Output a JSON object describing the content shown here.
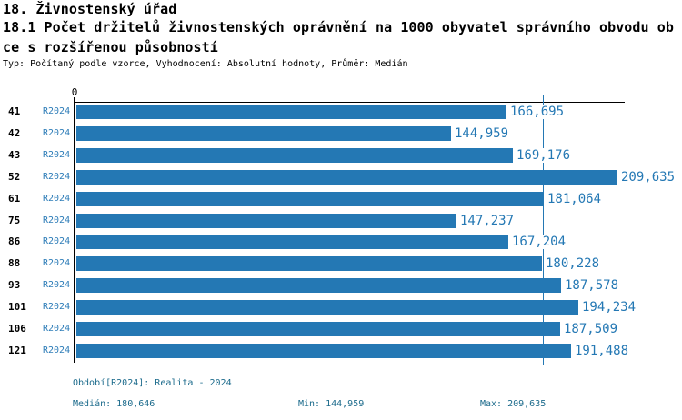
{
  "header": {
    "title_line1": "18. Živnostenský úřad",
    "title_line2": "18.1 Počet držitelů živnostenských oprávnění na 1000 obyvatel správního obvodu ob",
    "title_line3": "ce s rozšířenou působností",
    "subtitle": "Typ: Počítaný podle vzorce, Vyhodnocení: Absolutní hodnoty, Průměr: Medián"
  },
  "chart_data": {
    "type": "bar",
    "orientation": "horizontal",
    "title": "18.1 Počet držitelů živnostenských oprávnění na 1000 obyvatel správního obvodu obce s rozšířenou působností",
    "origin_tick_label": "0",
    "series_label": "R2024",
    "categories": [
      "41",
      "42",
      "43",
      "52",
      "61",
      "75",
      "86",
      "88",
      "93",
      "101",
      "106",
      "121"
    ],
    "values": [
      166695,
      144959,
      169176,
      209635,
      181064,
      147237,
      167204,
      180228,
      187578,
      194234,
      187509,
      191488
    ],
    "value_labels": [
      "166,695",
      "144,959",
      "169,176",
      "209,635",
      "181,064",
      "147,237",
      "167,204",
      "180,228",
      "187,578",
      "194,234",
      "187,509",
      "191,488"
    ],
    "median_value": 180646,
    "min_value": 144959,
    "max_value": 209635,
    "xlim": [
      0,
      212000
    ],
    "legend_position": "none",
    "grid": "median-line-only",
    "bar_color": "#2478b4",
    "median_line_color": "#2478b4",
    "value_label_color": "#2478b4",
    "series_label_color": "#2e7db8",
    "axis_color": "#000000"
  },
  "footer": {
    "period": "Období[R2024]: Realita - 2024",
    "median": "Medián: 180,646",
    "min": "Min: 144,959",
    "max": "Max: 209,635",
    "text_color": "#1c6b8c"
  }
}
